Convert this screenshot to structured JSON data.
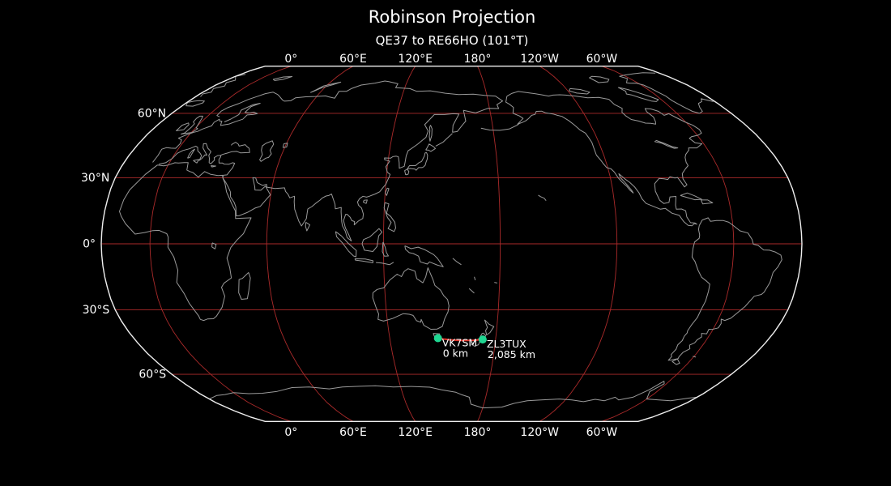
{
  "title": "Robinson Projection",
  "subtitle": "QE37 to RE66HO (101°T)",
  "projection_name": "Robinson",
  "colors": {
    "background": "#000000",
    "graticule": "#aa2a2a",
    "coastline": "#9a9a9a",
    "map_boundary": "#efefef",
    "great_circle_path": "#e03228",
    "marker": "#1fd792",
    "text": "#ffffff"
  },
  "axes": {
    "longitude_ticks": [
      {
        "label": "0°",
        "lon": 0
      },
      {
        "label": "60°E",
        "lon": 60
      },
      {
        "label": "120°E",
        "lon": 120
      },
      {
        "label": "180°",
        "lon": 180
      },
      {
        "label": "120°W",
        "lon": -120
      },
      {
        "label": "60°W",
        "lon": -60
      }
    ],
    "latitude_ticks": [
      {
        "label": "60°N",
        "lat": 60
      },
      {
        "label": "30°N",
        "lat": 30
      },
      {
        "label": "0°",
        "lat": 0
      },
      {
        "label": "30°S",
        "lat": -30
      },
      {
        "label": "60°S",
        "lat": -60
      }
    ]
  },
  "markers": [
    {
      "callsign": "VK7SM",
      "distance_label": "0 km",
      "lat": -42.9,
      "lon": 147.3
    },
    {
      "callsign": "ZL3TUX",
      "distance_label": "2,085 km",
      "lat": -43.5,
      "lon": 172.7
    }
  ]
}
